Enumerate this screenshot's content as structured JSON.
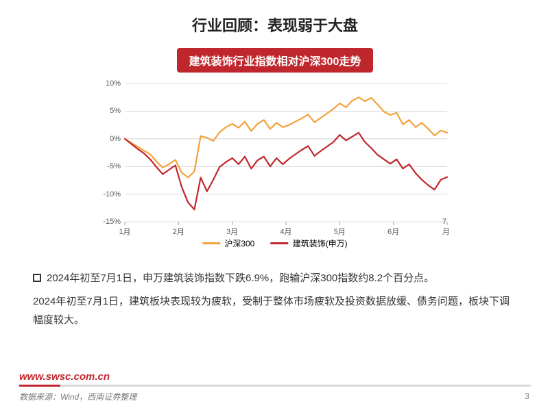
{
  "title": "行业回顾：表现弱于大盘",
  "subtitle": "建筑装饰行业指数相对沪深300走势",
  "chart": {
    "type": "line",
    "background_color": "#ffffff",
    "grid_color": "#bfbfbf",
    "grid_width": 0.6,
    "axis_color": "#a0a0a0",
    "xlim_index": [
      0,
      6
    ],
    "ylim": [
      -15,
      10
    ],
    "ytick_step": 5,
    "y_ticks": [
      "10%",
      "5%",
      "0%",
      "-5%",
      "-10%",
      "-15%"
    ],
    "y_tick_values": [
      10,
      5,
      0,
      -5,
      -10,
      -15
    ],
    "y_tick_fontsize": 11,
    "x_ticks": [
      "1月",
      "2月",
      "3月",
      "4月",
      "5月",
      "6月",
      "7月"
    ],
    "x_tick_fontsize": 11,
    "legend_position": "bottom-center",
    "legend_fontsize": 12,
    "line_width": 2.2,
    "series": [
      {
        "name": "沪深300",
        "color": "#f2a23a",
        "data": [
          0,
          -0.7,
          -1.4,
          -2.1,
          -2.8,
          -4.1,
          -5.2,
          -4.6,
          -3.8,
          -6.1,
          -7.0,
          -5.9,
          0.5,
          0.2,
          -0.4,
          1.2,
          2.1,
          2.7,
          2.0,
          3.1,
          1.4,
          2.7,
          3.4,
          1.8,
          2.9,
          2.1,
          2.5,
          3.1,
          3.7,
          4.4,
          3.0,
          3.8,
          4.6,
          5.4,
          6.4,
          5.7,
          6.9,
          7.5,
          6.8,
          7.4,
          6.2,
          4.9,
          4.3,
          4.7,
          2.6,
          3.4,
          2.1,
          2.9,
          1.8,
          0.6,
          1.5,
          1.1
        ]
      },
      {
        "name": "建筑装饰(申万)",
        "color": "#c0272d",
        "data": [
          0,
          -0.9,
          -1.8,
          -2.6,
          -3.7,
          -5.1,
          -6.4,
          -5.6,
          -4.8,
          -8.7,
          -11.5,
          -12.8,
          -7.0,
          -9.5,
          -7.4,
          -5.1,
          -4.2,
          -3.5,
          -4.6,
          -3.2,
          -5.4,
          -3.9,
          -3.2,
          -5.0,
          -3.5,
          -4.6,
          -3.6,
          -2.8,
          -2.0,
          -1.3,
          -3.1,
          -2.2,
          -1.4,
          -0.6,
          0.7,
          -0.3,
          0.4,
          1.1,
          -0.6,
          -1.7,
          -2.9,
          -3.7,
          -4.5,
          -3.7,
          -5.4,
          -4.6,
          -6.2,
          -7.4,
          -8.4,
          -9.2,
          -7.4,
          -6.9
        ]
      }
    ]
  },
  "body": {
    "para1": "2024年初至7月1日，申万建筑装饰指数下跌6.9%，跑输沪深300指数约8.2个百分点。",
    "para2": "2024年初至7月1日，建筑板块表现较为疲软，受制于整体市场疲软及投资数据放缓、债务问题，板块下调幅度较大。"
  },
  "footer": {
    "url": "www.swsc.com.cn",
    "source": "数据来源：Wind，西南证券整理",
    "page": "3",
    "url_color": "#c0272d",
    "bar_accent_color": "#c0272d",
    "bar_rest_color": "#d9d9d9"
  },
  "colors": {
    "subtitle_bg": "#c0272d",
    "subtitle_text": "#ffffff",
    "title_text": "#222222",
    "body_text": "#333333"
  }
}
